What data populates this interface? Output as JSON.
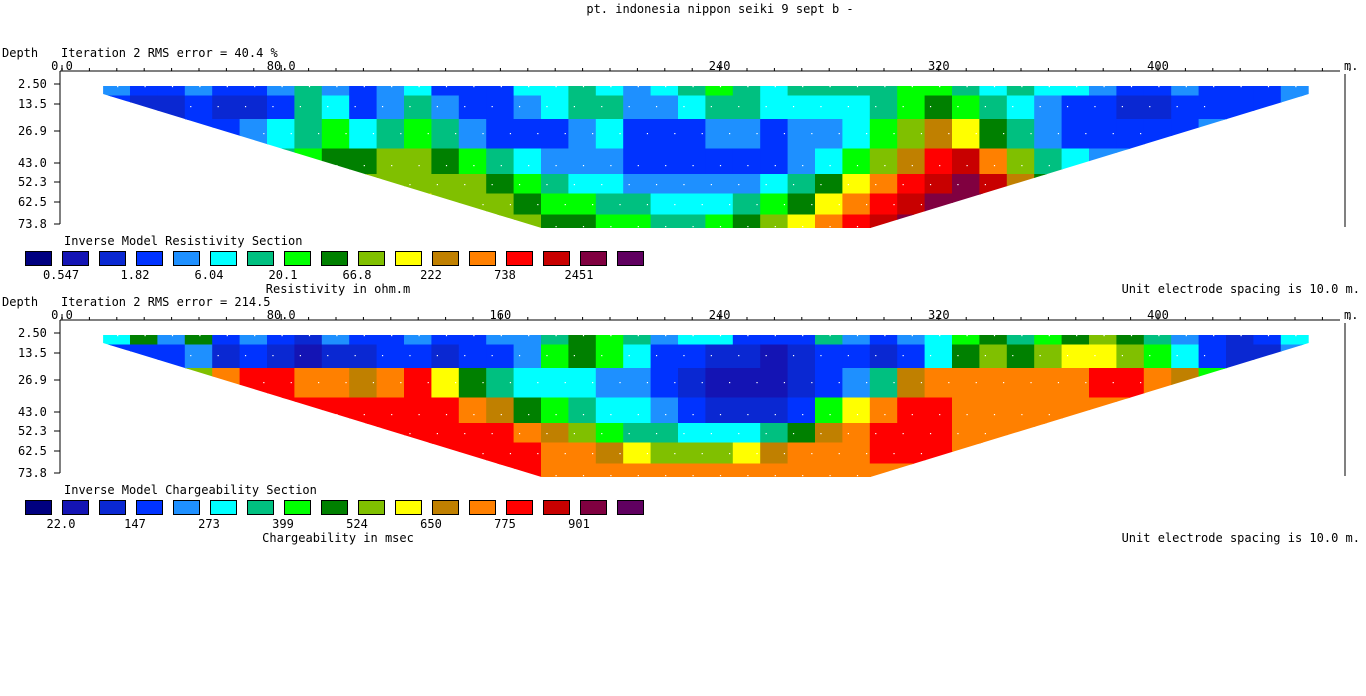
{
  "page_title": "pt. indonesia nippon seiki 9 sept b -",
  "depth_label": "Depth",
  "unit_m": "m.",
  "chart_data": [
    {
      "type": "heatmap",
      "iteration_text": "Iteration 2 RMS error = 40.4 %",
      "title": "Inverse Model Resistivity Section",
      "unit_label": "Resistivity in ohm.m",
      "spacing_text": "Unit electrode spacing is 10.0 m.",
      "x_ticks": [
        "0.0",
        "80.0",
        "240",
        "320",
        "400"
      ],
      "x_tick_values": [
        0,
        80,
        240,
        320,
        400
      ],
      "xlim": [
        0,
        470
      ],
      "depth_ticks": [
        "2.50",
        "13.5",
        "26.9",
        "43.0",
        "52.3",
        "62.5",
        "73.8"
      ],
      "depth_values": [
        2.5,
        13.5,
        26.9,
        43.0,
        52.3,
        62.5,
        73.8
      ],
      "section_extent": {
        "x_start": 15,
        "x_end": 455,
        "top_depth": 2.5,
        "bottom_depth": 73.8,
        "bottom_x_start": 175,
        "bottom_x_end": 295
      },
      "legend_colors": [
        "#000080",
        "#1414b4",
        "#0a28d2",
        "#0033ff",
        "#1e90ff",
        "#00ffff",
        "#00c080",
        "#00ff00",
        "#008000",
        "#80c000",
        "#ffff00",
        "#c08000",
        "#ff8000",
        "#ff0000",
        "#c80000",
        "#800040",
        "#600060"
      ],
      "legend_values": [
        "0.547",
        "1.82",
        "6.04",
        "20.1",
        "66.8",
        "222",
        "738",
        "2451"
      ],
      "bands": [
        {
          "depth": 2.5,
          "profile": [
            4,
            3,
            3,
            4,
            3,
            3,
            4,
            6,
            4,
            3,
            4,
            5,
            3,
            3,
            3,
            5,
            5,
            6,
            5,
            4,
            5,
            6,
            7,
            6,
            5,
            6,
            6,
            6,
            6,
            7,
            7,
            6,
            5,
            6,
            5,
            5,
            4,
            3,
            3,
            4,
            3,
            3,
            3,
            4
          ]
        },
        {
          "depth": 13.5,
          "profile": [
            3,
            2,
            2,
            3,
            2,
            2,
            3,
            6,
            5,
            3,
            4,
            6,
            4,
            3,
            3,
            4,
            5,
            6,
            6,
            4,
            4,
            5,
            6,
            6,
            5,
            5,
            5,
            5,
            6,
            7,
            8,
            7,
            6,
            5,
            4,
            3,
            3,
            2,
            2,
            3,
            3,
            3,
            3,
            4
          ]
        },
        {
          "depth": 26.9,
          "profile": [
            4,
            3,
            3,
            3,
            3,
            4,
            5,
            6,
            7,
            5,
            6,
            7,
            6,
            4,
            3,
            3,
            3,
            4,
            5,
            3,
            3,
            3,
            4,
            4,
            3,
            4,
            4,
            5,
            7,
            9,
            11,
            10,
            8,
            6,
            4,
            3,
            3,
            3,
            3,
            3,
            4,
            4,
            4,
            5
          ]
        },
        {
          "depth": 43.0,
          "profile": [
            5,
            5,
            4,
            4,
            5,
            5,
            6,
            7,
            8,
            8,
            9,
            9,
            8,
            7,
            6,
            5,
            4,
            4,
            4,
            3,
            3,
            3,
            3,
            3,
            3,
            4,
            5,
            7,
            9,
            11,
            13,
            14,
            12,
            9,
            6,
            5,
            4,
            4,
            5,
            5,
            5,
            5,
            5,
            5
          ]
        },
        {
          "depth": 52.3,
          "profile": [
            6,
            6,
            5,
            5,
            6,
            6,
            7,
            8,
            9,
            9,
            9,
            9,
            9,
            9,
            8,
            7,
            6,
            5,
            5,
            4,
            4,
            4,
            4,
            4,
            5,
            6,
            8,
            10,
            12,
            13,
            14,
            15,
            14,
            11,
            8,
            6,
            6,
            6,
            6,
            6,
            6,
            6,
            6,
            6
          ]
        },
        {
          "depth": 62.5,
          "profile": [
            7,
            7,
            6,
            6,
            7,
            7,
            8,
            9,
            9,
            9,
            10,
            10,
            9,
            9,
            9,
            8,
            7,
            7,
            6,
            6,
            5,
            5,
            5,
            6,
            7,
            8,
            10,
            12,
            13,
            14,
            15,
            15,
            15,
            12,
            9,
            7,
            7,
            7,
            7,
            7,
            7,
            7,
            7,
            7
          ]
        },
        {
          "depth": 73.8,
          "profile": [
            8,
            8,
            7,
            7,
            8,
            8,
            9,
            9,
            10,
            10,
            11,
            11,
            11,
            10,
            9,
            9,
            8,
            8,
            7,
            7,
            6,
            6,
            7,
            8,
            9,
            10,
            12,
            13,
            14,
            15,
            16,
            16,
            15,
            13,
            10,
            8,
            8,
            8,
            8,
            8,
            8,
            8,
            8,
            8
          ]
        }
      ]
    },
    {
      "type": "heatmap",
      "iteration_text": "Iteration 2 RMS error = 214.5",
      "title": "Inverse Model Chargeability Section",
      "unit_label": "Chargeability in msec",
      "spacing_text": "Unit electrode spacing is 10.0 m.",
      "x_ticks": [
        "0.0",
        "80.0",
        "160",
        "240",
        "320",
        "400"
      ],
      "x_tick_values": [
        0,
        80,
        160,
        240,
        320,
        400
      ],
      "xlim": [
        0,
        470
      ],
      "depth_ticks": [
        "2.50",
        "13.5",
        "26.9",
        "43.0",
        "52.3",
        "62.5",
        "73.8"
      ],
      "depth_values": [
        2.5,
        13.5,
        26.9,
        43.0,
        52.3,
        62.5,
        73.8
      ],
      "section_extent": {
        "x_start": 15,
        "x_end": 455,
        "top_depth": 2.5,
        "bottom_depth": 73.8,
        "bottom_x_start": 175,
        "bottom_x_end": 295
      },
      "legend_colors": [
        "#000080",
        "#1414b4",
        "#0a28d2",
        "#0033ff",
        "#1e90ff",
        "#00ffff",
        "#00c080",
        "#00ff00",
        "#008000",
        "#80c000",
        "#ffff00",
        "#c08000",
        "#ff8000",
        "#ff0000",
        "#c80000",
        "#800040",
        "#600060"
      ],
      "legend_values": [
        "22.0",
        "147",
        "273",
        "399",
        "524",
        "650",
        "775",
        "901"
      ],
      "bands": [
        {
          "depth": 2.5,
          "profile": [
            5,
            8,
            4,
            8,
            3,
            4,
            3,
            2,
            4,
            3,
            3,
            4,
            3,
            3,
            4,
            4,
            6,
            8,
            7,
            6,
            4,
            5,
            5,
            3,
            3,
            3,
            6,
            4,
            3,
            4,
            5,
            7,
            8,
            6,
            7,
            8,
            9,
            8,
            6,
            4,
            3,
            2,
            3,
            5
          ]
        },
        {
          "depth": 13.5,
          "profile": [
            3,
            3,
            3,
            4,
            2,
            3,
            2,
            1,
            2,
            2,
            3,
            3,
            2,
            3,
            3,
            4,
            7,
            8,
            7,
            5,
            3,
            3,
            2,
            2,
            1,
            2,
            3,
            3,
            2,
            3,
            5,
            8,
            9,
            8,
            9,
            10,
            10,
            9,
            7,
            5,
            3,
            2,
            2,
            4
          ]
        },
        {
          "depth": 26.9,
          "profile": [
            4,
            4,
            4,
            9,
            12,
            13,
            13,
            12,
            12,
            11,
            12,
            13,
            10,
            8,
            6,
            5,
            5,
            5,
            4,
            4,
            3,
            2,
            1,
            1,
            1,
            2,
            3,
            4,
            6,
            11,
            12,
            12,
            12,
            12,
            12,
            12,
            13,
            13,
            12,
            11,
            7,
            5,
            4,
            5
          ]
        },
        {
          "depth": 43.0,
          "profile": [
            6,
            6,
            6,
            13,
            13,
            13,
            13,
            13,
            13,
            13,
            13,
            13,
            13,
            12,
            11,
            8,
            7,
            6,
            5,
            5,
            4,
            3,
            2,
            2,
            2,
            3,
            7,
            10,
            12,
            13,
            13,
            12,
            12,
            12,
            12,
            12,
            12,
            12,
            12,
            12,
            12,
            8,
            6,
            6
          ]
        },
        {
          "depth": 52.3,
          "profile": [
            7,
            7,
            8,
            13,
            13,
            13,
            13,
            13,
            13,
            13,
            13,
            13,
            13,
            13,
            13,
            12,
            11,
            9,
            7,
            6,
            6,
            5,
            5,
            5,
            6,
            8,
            11,
            12,
            13,
            13,
            13,
            12,
            12,
            12,
            12,
            12,
            12,
            12,
            12,
            12,
            12,
            10,
            8,
            7
          ]
        },
        {
          "depth": 62.5,
          "profile": [
            8,
            8,
            9,
            13,
            13,
            13,
            13,
            13,
            13,
            13,
            13,
            13,
            13,
            13,
            13,
            13,
            12,
            12,
            11,
            10,
            9,
            9,
            9,
            10,
            11,
            12,
            12,
            12,
            13,
            13,
            13,
            12,
            12,
            12,
            12,
            12,
            12,
            12,
            12,
            12,
            12,
            11,
            9,
            8
          ]
        },
        {
          "depth": 73.8,
          "profile": [
            9,
            9,
            10,
            13,
            13,
            13,
            13,
            13,
            13,
            13,
            13,
            13,
            13,
            13,
            13,
            13,
            12,
            12,
            12,
            12,
            12,
            12,
            12,
            12,
            12,
            12,
            12,
            12,
            12,
            12,
            12,
            12,
            12,
            12,
            12,
            12,
            12,
            12,
            12,
            12,
            12,
            12,
            10,
            9
          ]
        }
      ]
    }
  ]
}
